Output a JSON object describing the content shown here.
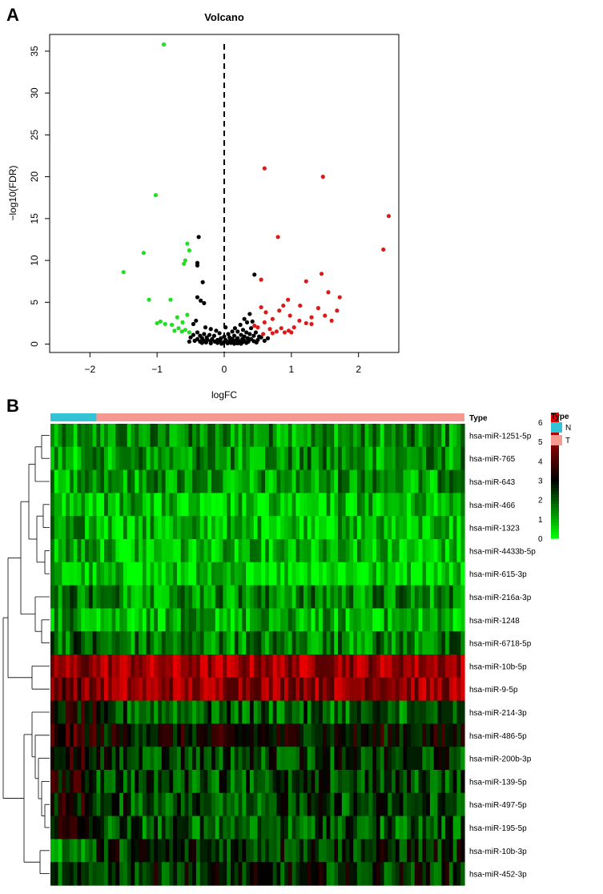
{
  "panels": {
    "a": {
      "letter": "A"
    },
    "b": {
      "letter": "B"
    }
  },
  "colors": {
    "up": "#dd1a1a",
    "down": "#22dd22",
    "nonsig": "#000000",
    "normal": "#33c3d6",
    "tumor": "#f59a90",
    "heat_low": "#00ff00",
    "heat_mid": "#000000",
    "heat_high": "#ff0000"
  },
  "chart_data": [
    {
      "type": "scatter",
      "title": "Volcano",
      "xlabel": "logFC",
      "ylabel": "−log10(FDR)",
      "xlim": [
        -2.6,
        2.6
      ],
      "ylim": [
        -1.0,
        37.0
      ],
      "xticks": [
        {
          "v": -2,
          "label": "−2"
        },
        {
          "v": -1,
          "label": "−1"
        },
        {
          "v": 0,
          "label": "0"
        },
        {
          "v": 1,
          "label": "1"
        },
        {
          "v": 2,
          "label": "2"
        }
      ],
      "yticks": [
        0,
        5,
        10,
        15,
        20,
        25,
        30,
        35
      ],
      "vline": 0,
      "grid": false,
      "points_up": [
        [
          0.6,
          21.0
        ],
        [
          1.47,
          20.0
        ],
        [
          2.45,
          15.3
        ],
        [
          2.37,
          11.3
        ],
        [
          0.8,
          12.8
        ],
        [
          1.45,
          8.4
        ],
        [
          0.55,
          7.7
        ],
        [
          1.22,
          7.5
        ],
        [
          1.55,
          6.2
        ],
        [
          1.72,
          5.6
        ],
        [
          0.95,
          5.3
        ],
        [
          0.88,
          4.6
        ],
        [
          1.13,
          4.6
        ],
        [
          0.55,
          4.4
        ],
        [
          1.4,
          4.3
        ],
        [
          1.68,
          4.0
        ],
        [
          0.82,
          4.0
        ],
        [
          0.62,
          3.8
        ],
        [
          0.98,
          3.4
        ],
        [
          1.5,
          3.4
        ],
        [
          1.3,
          3.2
        ],
        [
          0.72,
          3.0
        ],
        [
          1.12,
          2.8
        ],
        [
          1.6,
          2.8
        ],
        [
          0.6,
          2.6
        ],
        [
          1.22,
          2.5
        ],
        [
          1.3,
          2.4
        ],
        [
          0.45,
          2.2
        ],
        [
          1.04,
          2.0
        ],
        [
          0.5,
          2.0
        ],
        [
          0.85,
          1.9
        ],
        [
          0.68,
          1.8
        ],
        [
          0.96,
          1.6
        ],
        [
          0.78,
          1.5
        ],
        [
          0.9,
          1.4
        ],
        [
          0.72,
          1.3
        ],
        [
          0.58,
          1.2
        ],
        [
          1.0,
          1.4
        ]
      ],
      "points_down": [
        [
          -0.9,
          35.8
        ],
        [
          -1.02,
          17.8
        ],
        [
          -1.2,
          10.9
        ],
        [
          -1.5,
          8.6
        ],
        [
          -0.55,
          12.0
        ],
        [
          -0.52,
          11.2
        ],
        [
          -0.58,
          10.0
        ],
        [
          -0.6,
          9.6
        ],
        [
          -1.12,
          5.3
        ],
        [
          -0.8,
          5.3
        ],
        [
          -0.55,
          3.5
        ],
        [
          -0.7,
          3.2
        ],
        [
          -0.95,
          2.7
        ],
        [
          -0.62,
          2.6
        ],
        [
          -0.88,
          2.4
        ],
        [
          -0.78,
          2.3
        ],
        [
          -1.0,
          2.5
        ],
        [
          -0.68,
          1.9
        ],
        [
          -0.58,
          1.7
        ],
        [
          -0.74,
          1.6
        ],
        [
          -0.63,
          1.5
        ],
        [
          -0.52,
          1.4
        ]
      ],
      "points_nonsig": [
        [
          -0.38,
          12.8
        ],
        [
          -0.4,
          9.7
        ],
        [
          -0.4,
          9.4
        ],
        [
          0.45,
          8.3
        ],
        [
          -0.32,
          7.4
        ],
        [
          -0.4,
          5.6
        ],
        [
          -0.35,
          5.2
        ],
        [
          -0.3,
          4.9
        ],
        [
          0.38,
          3.6
        ],
        [
          0.3,
          3.0
        ],
        [
          -0.42,
          2.8
        ],
        [
          -0.46,
          2.4
        ],
        [
          0.34,
          2.6
        ],
        [
          0.24,
          2.3
        ],
        [
          0.42,
          2.7
        ],
        [
          -0.28,
          2.0
        ],
        [
          0.16,
          1.9
        ],
        [
          -0.2,
          1.8
        ],
        [
          0.28,
          1.7
        ],
        [
          0.4,
          1.9
        ],
        [
          0.02,
          2.0
        ],
        [
          -0.12,
          1.6
        ],
        [
          0.12,
          1.5
        ],
        [
          0.2,
          1.5
        ],
        [
          0.33,
          1.4
        ],
        [
          -0.4,
          1.4
        ],
        [
          -0.3,
          1.2
        ],
        [
          0.47,
          1.4
        ],
        [
          -0.07,
          1.3
        ],
        [
          0.06,
          1.2
        ],
        [
          -0.22,
          1.1
        ],
        [
          0.25,
          1.1
        ],
        [
          0.38,
          1.2
        ],
        [
          -0.36,
          1.0
        ],
        [
          0.15,
          1.0
        ],
        [
          -0.15,
          1.0
        ],
        [
          0.0,
          0.9
        ],
        [
          0.3,
          0.9
        ],
        [
          -0.46,
          1.1
        ],
        [
          0.44,
          1.0
        ],
        [
          -0.26,
          0.8
        ],
        [
          0.08,
          0.8
        ],
        [
          0.2,
          0.7
        ],
        [
          -0.05,
          0.7
        ],
        [
          0.35,
          0.7
        ],
        [
          -0.33,
          0.7
        ],
        [
          -0.18,
          0.6
        ],
        [
          0.12,
          0.6
        ],
        [
          0.27,
          0.6
        ],
        [
          -0.1,
          0.5
        ],
        [
          0.02,
          0.5
        ],
        [
          0.18,
          0.5
        ],
        [
          -0.25,
          0.5
        ],
        [
          0.4,
          0.6
        ],
        [
          -0.4,
          0.6
        ],
        [
          0.3,
          0.4
        ],
        [
          -0.3,
          0.4
        ],
        [
          0.08,
          0.4
        ],
        [
          -0.06,
          0.4
        ],
        [
          0.22,
          0.35
        ],
        [
          -0.2,
          0.35
        ],
        [
          0.14,
          0.3
        ],
        [
          -0.14,
          0.3
        ],
        [
          0.0,
          0.25
        ],
        [
          0.36,
          0.3
        ],
        [
          -0.36,
          0.3
        ],
        [
          0.27,
          0.2
        ],
        [
          -0.27,
          0.2
        ],
        [
          0.1,
          0.15
        ],
        [
          -0.1,
          0.15
        ],
        [
          0.2,
          0.1
        ],
        [
          -0.2,
          0.1
        ],
        [
          0.05,
          0.1
        ],
        [
          0.44,
          0.35
        ],
        [
          -0.44,
          0.4
        ],
        [
          0.33,
          0.15
        ],
        [
          -0.33,
          0.15
        ],
        [
          0.15,
          0.05
        ],
        [
          -0.04,
          0.05
        ],
        [
          0.25,
          0.05
        ],
        [
          0.5,
          0.5
        ],
        [
          0.48,
          0.2
        ],
        [
          0.55,
          0.8
        ],
        [
          0.6,
          0.4
        ],
        [
          0.52,
          0.9
        ],
        [
          -0.5,
          0.8
        ],
        [
          -0.52,
          0.3
        ],
        [
          0.65,
          0.7
        ]
      ]
    },
    {
      "type": "heatmap",
      "legend_title": "Type",
      "groups": [
        {
          "label": "N",
          "count": 12
        },
        {
          "label": "T",
          "count": 96
        }
      ],
      "color_ticks": [
        0,
        1,
        2,
        3,
        4,
        5,
        6
      ],
      "rows": [
        {
          "name": "hsa-miR-1251-5p",
          "n_mean": 1.0,
          "t_mean": 1.3
        },
        {
          "name": "hsa-miR-765",
          "n_mean": 1.0,
          "t_mean": 1.3
        },
        {
          "name": "hsa-miR-643",
          "n_mean": 0.9,
          "t_mean": 1.2
        },
        {
          "name": "hsa-miR-466",
          "n_mean": 0.6,
          "t_mean": 0.8
        },
        {
          "name": "hsa-miR-1323",
          "n_mean": 1.0,
          "t_mean": 0.8
        },
        {
          "name": "hsa-miR-4433b-5p",
          "n_mean": 1.0,
          "t_mean": 0.7
        },
        {
          "name": "hsa-miR-615-3p",
          "n_mean": 0.6,
          "t_mean": 0.5
        },
        {
          "name": "hsa-miR-216a-3p",
          "n_mean": 1.8,
          "t_mean": 1.4
        },
        {
          "name": "hsa-miR-1248",
          "n_mean": 1.3,
          "t_mean": 0.9
        },
        {
          "name": "hsa-miR-6718-5p",
          "n_mean": 1.9,
          "t_mean": 1.5
        },
        {
          "name": "hsa-miR-10b-5p",
          "n_mean": 4.9,
          "t_mean": 5.2
        },
        {
          "name": "hsa-miR-9-5p",
          "n_mean": 4.6,
          "t_mean": 5.1
        },
        {
          "name": "hsa-miR-214-3p",
          "n_mean": 3.0,
          "t_mean": 1.9
        },
        {
          "name": "hsa-miR-486-5p",
          "n_mean": 3.6,
          "t_mean": 3.0
        },
        {
          "name": "hsa-miR-200b-3p",
          "n_mean": 3.4,
          "t_mean": 2.3
        },
        {
          "name": "hsa-miR-139-5p",
          "n_mean": 3.2,
          "t_mean": 2.2
        },
        {
          "name": "hsa-miR-497-5p",
          "n_mean": 3.1,
          "t_mean": 2.2
        },
        {
          "name": "hsa-miR-195-5p",
          "n_mean": 3.1,
          "t_mean": 2.0
        },
        {
          "name": "hsa-miR-10b-3p",
          "n_mean": 1.6,
          "t_mean": 2.5
        },
        {
          "name": "hsa-miR-452-3p",
          "n_mean": 2.0,
          "t_mean": 2.5
        }
      ]
    }
  ]
}
